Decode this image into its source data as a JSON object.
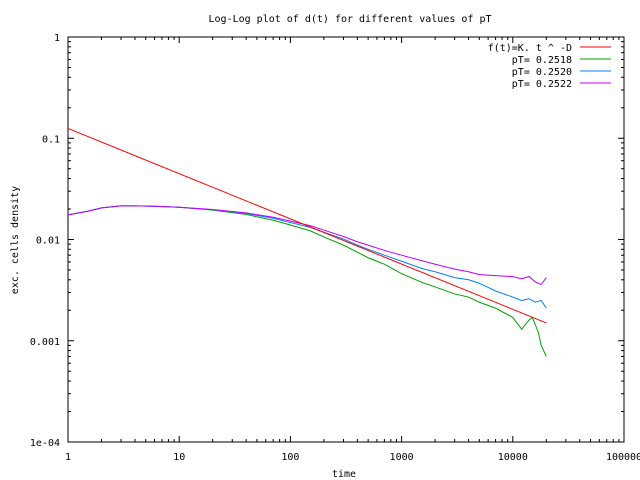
{
  "chart_data": {
    "type": "line",
    "title": "Log-Log plot of d(t) for different values of pT",
    "xlabel": "time",
    "ylabel": "exc. cells density",
    "xscale": "log",
    "yscale": "log",
    "xlim": [
      1,
      100000
    ],
    "ylim": [
      0.0001,
      1
    ],
    "xticks": [
      {
        "value": 1,
        "label": "1"
      },
      {
        "value": 10,
        "label": "10"
      },
      {
        "value": 100,
        "label": "100"
      },
      {
        "value": 1000,
        "label": "1000"
      },
      {
        "value": 10000,
        "label": "10000"
      },
      {
        "value": 100000,
        "label": "100000"
      }
    ],
    "yticks": [
      {
        "value": 0.0001,
        "label": "1e-04"
      },
      {
        "value": 0.001,
        "label": "0.001"
      },
      {
        "value": 0.01,
        "label": "0.01"
      },
      {
        "value": 0.1,
        "label": "0.1"
      },
      {
        "value": 1,
        "label": "1"
      }
    ],
    "grid": false,
    "legend_position": "top-right",
    "series": [
      {
        "name": "f(t)=K. t ^ -D",
        "color": "#ff0000",
        "x": [
          1,
          20000
        ],
        "y": [
          0.125,
          0.0015
        ]
      },
      {
        "name": "pT= 0.2518",
        "color": "#00a000",
        "x": [
          1,
          1.5,
          2,
          3,
          4,
          6,
          10,
          20,
          40,
          70,
          100,
          150,
          200,
          300,
          400,
          500,
          700,
          1000,
          1500,
          2000,
          3000,
          4000,
          5000,
          7000,
          10000,
          12000,
          14000,
          15000,
          17000,
          18000,
          20000
        ],
        "y": [
          0.0175,
          0.019,
          0.0205,
          0.0215,
          0.0215,
          0.0213,
          0.0208,
          0.0195,
          0.0177,
          0.0155,
          0.0139,
          0.0122,
          0.0106,
          0.0088,
          0.0075,
          0.0066,
          0.0057,
          0.0046,
          0.0038,
          0.0034,
          0.0029,
          0.0027,
          0.0024,
          0.0021,
          0.0017,
          0.0013,
          0.0016,
          0.0017,
          0.0012,
          0.0009,
          0.0007
        ]
      },
      {
        "name": "pT= 0.2520",
        "color": "#0080ff",
        "x": [
          1,
          1.5,
          2,
          3,
          4,
          6,
          10,
          20,
          40,
          70,
          100,
          150,
          200,
          300,
          400,
          500,
          700,
          1000,
          1500,
          2000,
          3000,
          4000,
          5000,
          7000,
          10000,
          12000,
          14000,
          16000,
          18000,
          20000
        ],
        "y": [
          0.0175,
          0.019,
          0.0205,
          0.0215,
          0.0215,
          0.0213,
          0.0208,
          0.0197,
          0.0181,
          0.0162,
          0.0147,
          0.0132,
          0.0118,
          0.0101,
          0.0088,
          0.008,
          0.007,
          0.0061,
          0.0052,
          0.0048,
          0.0042,
          0.004,
          0.0037,
          0.0031,
          0.0027,
          0.0025,
          0.0026,
          0.0024,
          0.0025,
          0.0021
        ]
      },
      {
        "name": "pT= 0.2522",
        "color": "#c000ff",
        "x": [
          1,
          1.5,
          2,
          3,
          4,
          6,
          10,
          20,
          40,
          70,
          100,
          150,
          200,
          300,
          400,
          500,
          700,
          1000,
          1500,
          2000,
          3000,
          4000,
          5000,
          7000,
          10000,
          12000,
          14000,
          16000,
          18000,
          20000
        ],
        "y": [
          0.0175,
          0.019,
          0.0205,
          0.0215,
          0.0215,
          0.0213,
          0.0208,
          0.0198,
          0.0183,
          0.0166,
          0.0152,
          0.0137,
          0.0124,
          0.0107,
          0.0095,
          0.0088,
          0.0078,
          0.007,
          0.0062,
          0.0057,
          0.0051,
          0.0048,
          0.0045,
          0.0044,
          0.0043,
          0.0041,
          0.0043,
          0.0038,
          0.0036,
          0.0042
        ]
      }
    ]
  }
}
